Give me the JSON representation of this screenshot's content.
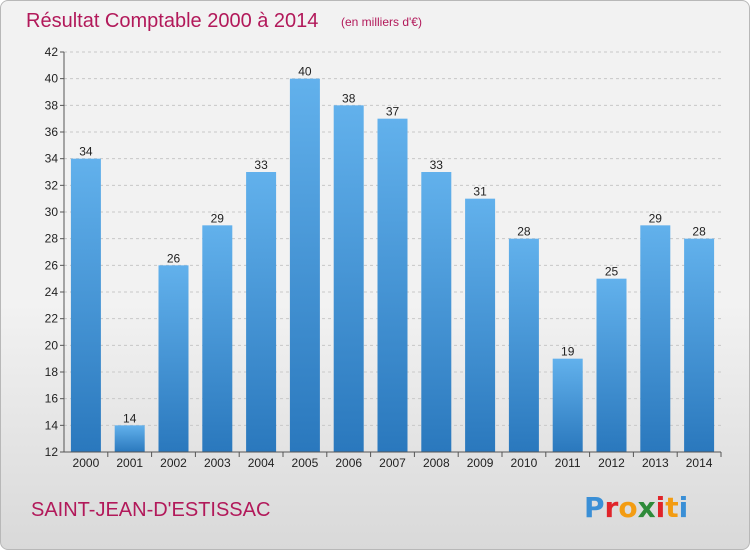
{
  "chart_data": {
    "type": "bar",
    "title": "Résultat Comptable 2000 à 2014",
    "subtitle": "(en milliers d'€)",
    "categories": [
      "2000",
      "2001",
      "2002",
      "2003",
      "2004",
      "2005",
      "2006",
      "2007",
      "2008",
      "2009",
      "2010",
      "2011",
      "2012",
      "2013",
      "2014"
    ],
    "values": [
      34,
      14,
      26,
      29,
      33,
      40,
      38,
      37,
      33,
      31,
      28,
      19,
      25,
      29,
      28
    ],
    "ylim": [
      12,
      42
    ],
    "yticks": [
      12,
      14,
      16,
      18,
      20,
      22,
      24,
      26,
      28,
      30,
      32,
      34,
      36,
      38,
      40,
      42
    ],
    "grid": true,
    "xlabel": "",
    "ylabel": ""
  },
  "footer": {
    "commune": "SAINT-JEAN-D'ESTISSAC",
    "logo_letters": [
      "P",
      "r",
      "o",
      "x",
      "i",
      "t",
      "i"
    ],
    "logo_colors": [
      "#3a8fd6",
      "#e0242a",
      "#f39c12",
      "#2e8b3a",
      "#e0242a",
      "#f39c12",
      "#3a8fd6"
    ]
  },
  "colors": {
    "accent": "#b2195a",
    "bar_top": "#62b1ec",
    "bar_bottom": "#2a78bd"
  }
}
